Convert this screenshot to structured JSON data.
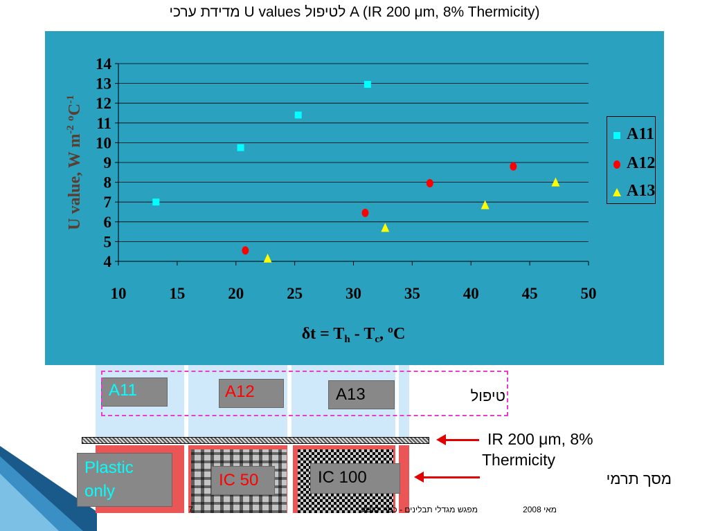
{
  "title": "מדידת ערכי U values לטיפול A (IR 200 μm, 8%  Thermicity)",
  "chart_data": {
    "type": "scatter",
    "xlabel": "δt = Th - Tc, ºC",
    "ylabel": "U value,  W  m-2 ºC-1",
    "xlim": [
      10,
      50
    ],
    "ylim": [
      4,
      14
    ],
    "xticks": [
      "10",
      "15",
      "20",
      "25",
      "30",
      "35",
      "40",
      "45",
      "50"
    ],
    "yticks": [
      "4",
      "5",
      "6",
      "7",
      "8",
      "9",
      "10",
      "11",
      "12",
      "13",
      "14"
    ],
    "grid": "horizontal",
    "legend_position": "right",
    "series": [
      {
        "name": "A11",
        "marker": "square",
        "color": "#00ffff",
        "points": [
          [
            13.2,
            7.0
          ],
          [
            20.4,
            9.75
          ],
          [
            25.3,
            11.4
          ],
          [
            31.2,
            12.95
          ]
        ]
      },
      {
        "name": "A12",
        "marker": "circle",
        "color": "#ff0000",
        "points": [
          [
            20.8,
            4.55
          ],
          [
            31.0,
            6.45
          ],
          [
            36.5,
            7.95
          ],
          [
            43.6,
            8.8
          ]
        ]
      },
      {
        "name": "A13",
        "marker": "triangle",
        "color": "#ffff00",
        "points": [
          [
            22.7,
            4.15
          ],
          [
            32.7,
            5.7
          ],
          [
            41.2,
            6.85
          ],
          [
            47.2,
            8.0
          ]
        ]
      }
    ]
  },
  "treatments": {
    "label": "טיפול",
    "a11": "A11",
    "a12": "A12",
    "a13": "A13"
  },
  "materials": {
    "plastic_only": "Plastic only",
    "ic50": "IC 50",
    "ic100": "IC 100"
  },
  "film_label_line1": "IR 200 μm, 8%",
  "film_label_line2": "Thermicity",
  "screen_label": "מסך תרמי",
  "footer": {
    "page": "7",
    "meeting": "מפגש מגדלי תבלינים - כפר יהושע",
    "date": "מאי 2008"
  }
}
